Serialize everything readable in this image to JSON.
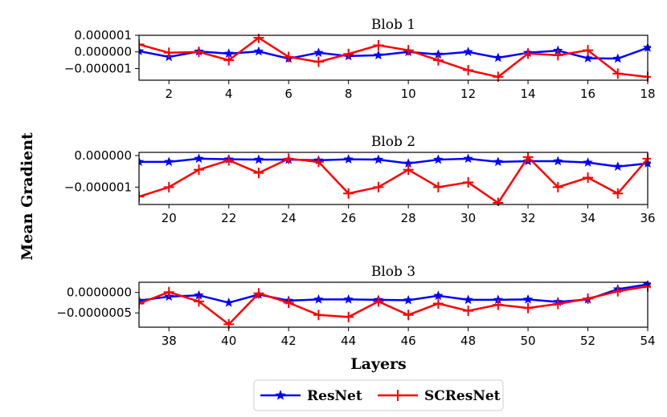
{
  "figure": {
    "ylabel": "Mean Gradient",
    "xlabel": "Layers",
    "legend": {
      "placement": "bottom-center",
      "entries": [
        {
          "name": "ResNet",
          "color": "#0000ff",
          "marker": "star"
        },
        {
          "name": "SCResNet",
          "color": "#ff0000",
          "marker": "plus"
        }
      ]
    }
  },
  "chart_data": [
    {
      "type": "line",
      "title": "Blob 1",
      "xlim": [
        1,
        18
      ],
      "ylim": [
        -1.7e-06,
        1e-06
      ],
      "xticks": [
        2,
        4,
        6,
        8,
        10,
        12,
        14,
        16,
        18
      ],
      "yticks": [
        {
          "value": 1e-06,
          "label": "0.000001"
        },
        {
          "value": 0.0,
          "label": "0.000000"
        },
        {
          "value": -1e-06,
          "label": "−0.000001"
        }
      ],
      "x": [
        1,
        2,
        3,
        4,
        5,
        6,
        7,
        8,
        9,
        10,
        11,
        12,
        13,
        14,
        15,
        16,
        17,
        18
      ],
      "series": [
        {
          "name": "ResNet",
          "values": [
            5e-08,
            -3e-07,
            3e-08,
            -1e-07,
            3e-08,
            -4e-07,
            -5e-08,
            -2.5e-07,
            -2e-07,
            0.0,
            -1.5e-07,
            0.0,
            -3.5e-07,
            -5e-08,
            8e-08,
            -3.8e-07,
            -4e-07,
            2.5e-07
          ]
        },
        {
          "name": "SCResNet",
          "values": [
            4.5e-07,
            -5e-08,
            0.0,
            -5e-07,
            8.5e-07,
            -3e-07,
            -6e-07,
            -1.2e-07,
            4e-07,
            1e-07,
            -5e-07,
            -1.1e-06,
            -1.5e-06,
            -1e-07,
            -2e-07,
            1e-07,
            -1.3e-06,
            -1.5e-06
          ]
        }
      ]
    },
    {
      "type": "line",
      "title": "Blob 2",
      "xlim": [
        19,
        36
      ],
      "ylim": [
        -1.55e-06,
        1e-07
      ],
      "xticks": [
        20,
        22,
        24,
        26,
        28,
        30,
        32,
        34,
        36
      ],
      "yticks": [
        {
          "value": 0.0,
          "label": "0.000000"
        },
        {
          "value": -1e-06,
          "label": "−0.000001"
        }
      ],
      "x": [
        19,
        20,
        21,
        22,
        23,
        24,
        25,
        26,
        27,
        28,
        29,
        30,
        31,
        32,
        33,
        34,
        35,
        36
      ],
      "series": [
        {
          "name": "ResNet",
          "values": [
            -2e-07,
            -2e-07,
            -1e-07,
            -1.2e-07,
            -1.3e-07,
            -1.3e-07,
            -1.5e-07,
            -1.2e-07,
            -1.3e-07,
            -2.5e-07,
            -1.3e-07,
            -1e-07,
            -2e-07,
            -1.8e-07,
            -1.8e-07,
            -2.2e-07,
            -3.5e-07,
            -2.5e-07
          ]
        },
        {
          "name": "SCResNet",
          "values": [
            -1.3e-06,
            -1e-06,
            -4.5e-07,
            -1.5e-07,
            -5.5e-07,
            -1e-07,
            -2e-07,
            -1.2e-06,
            -1e-06,
            -4.5e-07,
            -1e-06,
            -8.5e-07,
            -1.5e-06,
            -5e-08,
            -1e-06,
            -7e-07,
            -1.2e-06,
            -1e-07
          ]
        }
      ]
    },
    {
      "type": "line",
      "title": "Blob 3",
      "xlim": [
        37,
        54
      ],
      "ylim": [
        -8.5e-07,
        2.5e-07
      ],
      "xticks": [
        38,
        40,
        42,
        44,
        46,
        48,
        50,
        52,
        54
      ],
      "yticks": [
        {
          "value": 0.0,
          "label": "0.0000000"
        },
        {
          "value": -5e-07,
          "label": "−0.0000005"
        }
      ],
      "x": [
        37,
        38,
        39,
        40,
        41,
        42,
        43,
        44,
        45,
        46,
        47,
        48,
        49,
        50,
        51,
        52,
        53,
        54
      ],
      "series": [
        {
          "name": "ResNet",
          "values": [
            -2e-07,
            -1e-07,
            -7e-08,
            -2.5e-07,
            -5e-08,
            -2e-07,
            -1.7e-07,
            -1.7e-07,
            -1.8e-07,
            -1.9e-07,
            -8e-08,
            -1.8e-07,
            -1.8e-07,
            -1.7e-07,
            -2.3e-07,
            -1.7e-07,
            8e-08,
            2e-07
          ]
        },
        {
          "name": "SCResNet",
          "values": [
            -2.7e-07,
            1e-08,
            -2.2e-07,
            -7.8e-07,
            -2e-08,
            -2.5e-07,
            -5.5e-07,
            -6e-07,
            -2.2e-07,
            -5.5e-07,
            -2.7e-07,
            -4.5e-07,
            -3e-07,
            -3.8e-07,
            -2.8e-07,
            -1.5e-07,
            3e-08,
            1.5e-07
          ]
        }
      ]
    }
  ]
}
